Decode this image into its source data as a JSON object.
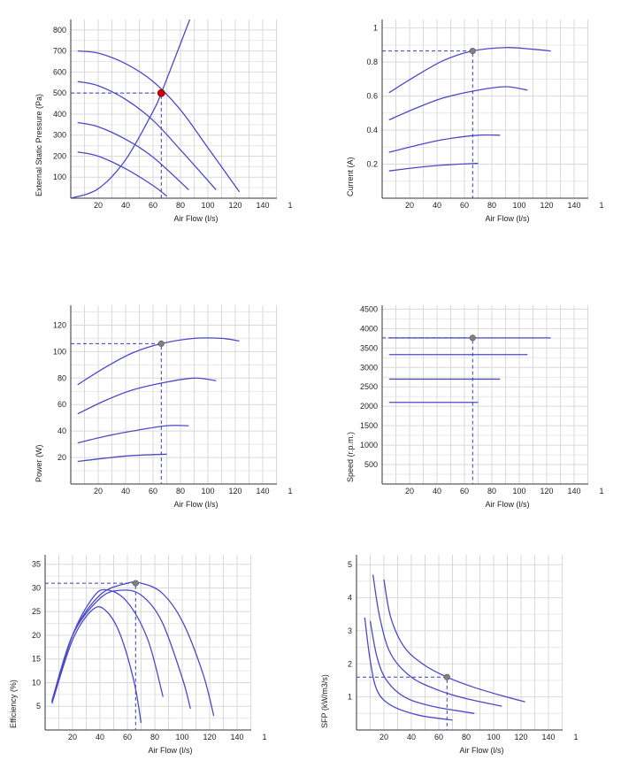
{
  "colors": {
    "curve": "#4a4ac8",
    "guide": "#3b3bbf",
    "duty_point": "#cc0000",
    "marker": "#808080",
    "grid": "#d9d9d9"
  },
  "chart_data": [
    {
      "id": "pressure",
      "type": "line",
      "xlabel": "Air Flow (l/s)",
      "ylabel": "External Static Pressure (Pa)",
      "xlim": [
        0,
        150
      ],
      "ylim": [
        0,
        850
      ],
      "xticks": [
        "20",
        "40",
        "60",
        "80",
        "100",
        "120",
        "140",
        "1"
      ],
      "yticks": [
        "100",
        "200",
        "300",
        "400",
        "500",
        "600",
        "700",
        "800"
      ],
      "grid": true,
      "series": [
        {
          "x": [
            5,
            20,
            40,
            60,
            80,
            100,
            123
          ],
          "y": [
            700,
            690,
            640,
            555,
            420,
            240,
            30
          ]
        },
        {
          "x": [
            5,
            20,
            40,
            60,
            80,
            106
          ],
          "y": [
            555,
            535,
            470,
            370,
            230,
            40
          ]
        },
        {
          "x": [
            5,
            20,
            40,
            60,
            86
          ],
          "y": [
            360,
            340,
            280,
            195,
            40
          ]
        },
        {
          "x": [
            5,
            20,
            40,
            60,
            70
          ],
          "y": [
            220,
            200,
            140,
            60,
            10
          ]
        }
      ],
      "system_curve": {
        "x": [
          0,
          20,
          40,
          60,
          66,
          80,
          88
        ],
        "y": [
          0,
          45,
          183,
          413,
          500,
          735,
          870
        ]
      },
      "guide_point": {
        "x": 66,
        "y": 500
      },
      "point_style": "duty"
    },
    {
      "id": "current",
      "type": "line",
      "xlabel": "Air Flow (l/s)",
      "ylabel": "Current (A)",
      "xlim": [
        0,
        150
      ],
      "ylim": [
        0,
        1.05
      ],
      "xticks": [
        "20",
        "40",
        "60",
        "80",
        "100",
        "120",
        "140",
        "1"
      ],
      "yticks": [
        "0.2",
        "0.4",
        "0.6",
        "0.8",
        "1"
      ],
      "grid": true,
      "series": [
        {
          "x": [
            5,
            25,
            45,
            66,
            90,
            110,
            123
          ],
          "y": [
            0.62,
            0.72,
            0.81,
            0.865,
            0.885,
            0.875,
            0.865
          ]
        },
        {
          "x": [
            5,
            25,
            45,
            70,
            90,
            106
          ],
          "y": [
            0.46,
            0.53,
            0.59,
            0.635,
            0.655,
            0.635
          ]
        },
        {
          "x": [
            5,
            25,
            45,
            70,
            86
          ],
          "y": [
            0.27,
            0.31,
            0.345,
            0.37,
            0.37
          ]
        },
        {
          "x": [
            5,
            25,
            45,
            70
          ],
          "y": [
            0.16,
            0.18,
            0.195,
            0.205
          ]
        }
      ],
      "guide_point": {
        "x": 66,
        "y": 0.865
      },
      "point_style": "marker"
    },
    {
      "id": "power",
      "type": "line",
      "xlabel": "Air Flow (l/s)",
      "ylabel": "Power (W)",
      "xlim": [
        0,
        150
      ],
      "ylim": [
        0,
        135
      ],
      "xticks": [
        "20",
        "40",
        "60",
        "80",
        "100",
        "120",
        "140",
        "1"
      ],
      "yticks": [
        "20",
        "40",
        "60",
        "80",
        "100",
        "120"
      ],
      "grid": true,
      "series": [
        {
          "x": [
            5,
            25,
            45,
            66,
            90,
            110,
            123
          ],
          "y": [
            75,
            88,
            99,
            106,
            110,
            110,
            108
          ]
        },
        {
          "x": [
            5,
            25,
            45,
            70,
            90,
            106
          ],
          "y": [
            53,
            63,
            71,
            77,
            80,
            78
          ]
        },
        {
          "x": [
            5,
            25,
            45,
            70,
            86
          ],
          "y": [
            31,
            36,
            40,
            44,
            44
          ]
        },
        {
          "x": [
            5,
            25,
            45,
            70
          ],
          "y": [
            17,
            19.5,
            21.5,
            22.5
          ]
        }
      ],
      "guide_point": {
        "x": 66,
        "y": 106
      },
      "point_style": "marker"
    },
    {
      "id": "speed",
      "type": "line",
      "xlabel": "Air Flow (l/s)",
      "ylabel": "Speed (r.p.m.)",
      "xlim": [
        0,
        150
      ],
      "ylim": [
        0,
        4600
      ],
      "xticks": [
        "20",
        "40",
        "60",
        "80",
        "100",
        "120",
        "140",
        "1"
      ],
      "yticks": [
        "500",
        "1000",
        "1500",
        "2000",
        "2500",
        "3000",
        "3500",
        "4000",
        "4500"
      ],
      "grid": true,
      "series": [
        {
          "x": [
            5,
            123
          ],
          "y": [
            3760,
            3760
          ]
        },
        {
          "x": [
            5,
            106
          ],
          "y": [
            3330,
            3330
          ]
        },
        {
          "x": [
            5,
            86
          ],
          "y": [
            2700,
            2700
          ]
        },
        {
          "x": [
            5,
            70
          ],
          "y": [
            2100,
            2100
          ]
        }
      ],
      "guide_point": {
        "x": 66,
        "y": 3760
      },
      "point_style": "marker"
    },
    {
      "id": "efficiency",
      "type": "line",
      "xlabel": "Air Flow (l/s)",
      "ylabel": "Efficiency (%)",
      "xlim": [
        0,
        150
      ],
      "ylim": [
        0,
        37
      ],
      "xticks": [
        "20",
        "40",
        "60",
        "80",
        "100",
        "120",
        "140",
        "1"
      ],
      "yticks": [
        "5",
        "10",
        "15",
        "20",
        "25",
        "30",
        "35"
      ],
      "grid": true,
      "series": [
        {
          "x": [
            5,
            20,
            40,
            60,
            70,
            85,
            100,
            115,
            123
          ],
          "y": [
            6.2,
            20,
            28.5,
            31,
            31,
            29,
            23,
            12,
            3
          ]
        },
        {
          "x": [
            5,
            20,
            40,
            55,
            70,
            85,
            100,
            106
          ],
          "y": [
            6,
            20,
            27.8,
            29.5,
            28.5,
            23,
            11,
            4.5
          ]
        },
        {
          "x": [
            5,
            20,
            35,
            45,
            60,
            75,
            86
          ],
          "y": [
            5.8,
            20,
            28,
            29.6,
            27,
            19,
            7
          ]
        },
        {
          "x": [
            5,
            20,
            35,
            45,
            55,
            65,
            70
          ],
          "y": [
            5.6,
            19,
            25.5,
            25,
            20,
            10,
            1.5
          ]
        }
      ],
      "guide_point": {
        "x": 66,
        "y": 31
      },
      "point_style": "marker"
    },
    {
      "id": "sfp",
      "type": "line",
      "xlabel": "Air Flow (l/s)",
      "ylabel": "SFP (kW/m3/s)",
      "xlim": [
        0,
        150
      ],
      "ylim": [
        0,
        5.3
      ],
      "xticks": [
        "20",
        "40",
        "60",
        "80",
        "100",
        "120",
        "140",
        "1"
      ],
      "yticks": [
        "1",
        "2",
        "3",
        "4",
        "5"
      ],
      "grid": true,
      "series": [
        {
          "x": [
            20,
            25,
            35,
            50,
            66,
            85,
            105,
            123
          ],
          "y": [
            4.55,
            3.4,
            2.5,
            1.95,
            1.6,
            1.3,
            1.05,
            0.85
          ]
        },
        {
          "x": [
            12,
            17,
            25,
            40,
            60,
            80,
            106
          ],
          "y": [
            4.7,
            3.4,
            2.3,
            1.6,
            1.2,
            0.95,
            0.72
          ]
        },
        {
          "x": [
            10,
            15,
            22,
            35,
            55,
            86
          ],
          "y": [
            3.3,
            2.2,
            1.5,
            1.0,
            0.72,
            0.5
          ]
        },
        {
          "x": [
            6,
            10,
            15,
            25,
            45,
            70
          ],
          "y": [
            3.4,
            2.1,
            1.2,
            0.75,
            0.45,
            0.3
          ]
        }
      ],
      "guide_point": {
        "x": 66,
        "y": 1.6
      },
      "point_style": "marker"
    }
  ]
}
